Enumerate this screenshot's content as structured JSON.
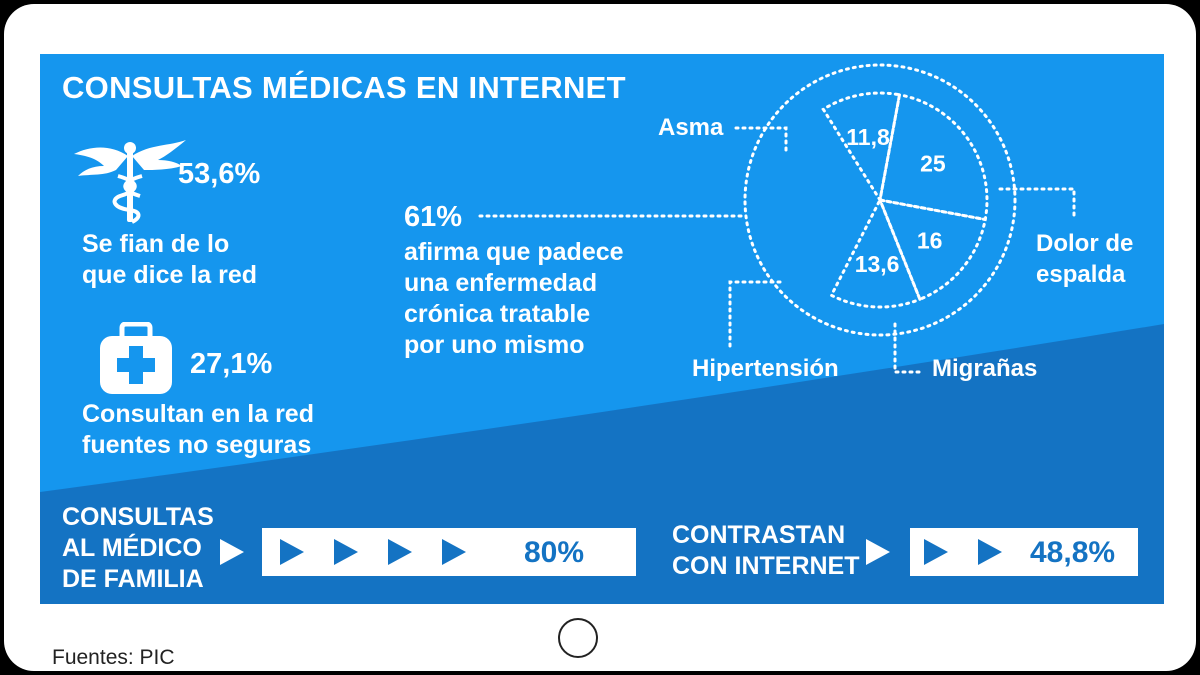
{
  "title": "CONSULTAS MÉDICAS EN INTERNET",
  "stats": [
    {
      "value": "53,6%",
      "text": [
        "Se fian de lo",
        "que dice la red"
      ],
      "icon": "caduceus-icon"
    },
    {
      "value": "27,1%",
      "text": [
        "Consultan en la red",
        "fuentes no seguras"
      ],
      "icon": "medical-kit-icon"
    }
  ],
  "chronic": {
    "value": "61%",
    "text": [
      "afirma que padece",
      "una enfermedad",
      "crónica tratable",
      "por uno mismo"
    ]
  },
  "chart_data": {
    "type": "pie",
    "unit": "%",
    "slices": [
      {
        "label": "Asma",
        "value": 11.8,
        "display": "11,8"
      },
      {
        "label": "Dolor de espalda",
        "value": 25,
        "display": "25"
      },
      {
        "label": "Migrañas",
        "value": 16,
        "display": "16"
      },
      {
        "label": "Hipertensión",
        "value": 13.6,
        "display": "13,6"
      }
    ],
    "category_labels": {
      "asma": "Asma",
      "dolor": [
        "Dolor de",
        "espalda"
      ],
      "migranas": "Migrañas",
      "hipertension": "Hipertensión"
    }
  },
  "bars": [
    {
      "label": [
        "CONSULTAS",
        "AL MÉDICO",
        "DE FAMILIA"
      ],
      "value": 80,
      "display": "80%"
    },
    {
      "label": [
        "CONTRASTAN",
        "CON INTERNET"
      ],
      "value": 48.8,
      "display": "48,8%"
    }
  ],
  "source": "Fuentes: PIC",
  "colors": {
    "background": "#1596ee",
    "dark_band": "#1473c3",
    "text": "#ffffff",
    "bar_fill": "#ffffff",
    "arrow": "#1473c3"
  }
}
